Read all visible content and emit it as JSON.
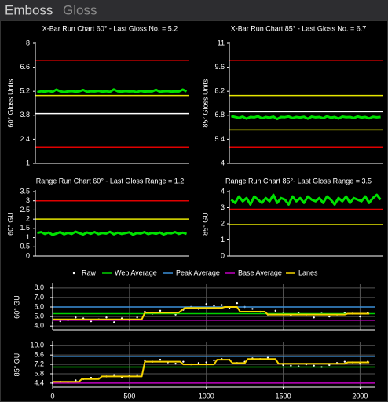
{
  "tabs": [
    "Emboss",
    "Gloss"
  ],
  "legend": {
    "position": "top"
  },
  "chart_data": [
    {
      "type": "line",
      "title": "X-Bar Run Chart 60° - Last Gloss No. = 5.2",
      "y_label": "60° Gloss Units",
      "ylim": [
        1,
        8
      ],
      "yticks": [
        1,
        2.4,
        3.8,
        5.2,
        6.6,
        8
      ],
      "hlines": [
        {
          "value": 7,
          "color": "#e00000"
        },
        {
          "value": 4.95,
          "color": "#e6e600"
        },
        {
          "value": 3.9,
          "color": "#ffffff"
        },
        {
          "value": 1.95,
          "color": "#e00000"
        }
      ],
      "series": [
        {
          "color": "#00e000",
          "values": [
            5.15,
            5.2,
            5.18,
            5.22,
            5.17,
            5.3,
            5.2,
            5.16,
            5.19,
            5.21,
            5.18,
            5.2,
            5.28,
            5.17,
            5.2,
            5.19,
            5.22,
            5.18,
            5.2,
            5.17,
            5.31,
            5.2,
            5.18,
            5.21,
            5.19,
            5.2,
            5.16,
            5.22,
            5.18,
            5.2,
            5.19,
            5.29,
            5.17,
            5.2,
            5.21,
            5.18,
            5.2,
            5.19,
            5.3,
            5.2
          ]
        }
      ]
    },
    {
      "type": "line",
      "title": "X-Bar Run Chart 85° - Last Gloss No. = 6.7",
      "y_label": "85° Gloss Units",
      "ylim": [
        4,
        11
      ],
      "yticks": [
        4,
        5.4,
        6.8,
        8.2,
        9.6,
        11
      ],
      "hlines": [
        {
          "value": 10,
          "color": "#e00000"
        },
        {
          "value": 7.95,
          "color": "#e6e600"
        },
        {
          "value": 7,
          "color": "#ffffff"
        },
        {
          "value": 5.95,
          "color": "#e6e600"
        },
        {
          "value": 4.95,
          "color": "#e00000"
        }
      ],
      "series": [
        {
          "color": "#00e000",
          "values": [
            6.75,
            6.7,
            6.65,
            6.72,
            6.6,
            6.7,
            6.68,
            6.74,
            6.62,
            6.7,
            6.66,
            6.72,
            6.58,
            6.7,
            6.69,
            6.73,
            6.64,
            6.7,
            6.67,
            6.71,
            6.6,
            6.72,
            6.68,
            6.7,
            6.63,
            6.74,
            6.66,
            6.7,
            6.61,
            6.72,
            6.69,
            6.7,
            6.64,
            6.73,
            6.67,
            6.7,
            6.62,
            6.71,
            6.68,
            6.7
          ]
        }
      ]
    },
    {
      "type": "line",
      "title": "Range Run Chart 60° - Last Gloss Range = 1.2",
      "y_label": "60° GU",
      "ylim": [
        0,
        3.5
      ],
      "yticks": [
        0,
        0.5,
        1,
        1.5,
        2,
        2.5,
        3,
        3.5
      ],
      "hlines": [
        {
          "value": 3,
          "color": "#e00000"
        },
        {
          "value": 2,
          "color": "#e6e600"
        }
      ],
      "series": [
        {
          "color": "#00e000",
          "values": [
            1.25,
            1.3,
            1.2,
            1.28,
            1.15,
            1.22,
            1.3,
            1.18,
            1.26,
            1.2,
            1.32,
            1.24,
            1.17,
            1.28,
            1.21,
            1.3,
            1.19,
            1.25,
            1.22,
            1.31,
            1.18,
            1.27,
            1.2,
            1.24,
            1.29,
            1.16,
            1.25,
            1.22,
            1.3,
            1.19,
            1.26,
            1.21,
            1.28,
            1.17,
            1.25,
            1.23,
            1.3,
            1.2,
            1.27,
            1.2
          ]
        }
      ]
    },
    {
      "type": "line",
      "title": "Range Run Chart 85°- Last Gloss Range = 3.5",
      "y_label": "85° GU",
      "ylim": [
        0,
        4
      ],
      "yticks": [
        0,
        1,
        2,
        3,
        4
      ],
      "hlines": [
        {
          "value": 2.9,
          "color": "#e00000"
        },
        {
          "value": 1.95,
          "color": "#e6e600"
        }
      ],
      "series": [
        {
          "color": "#00e000",
          "values": [
            3.5,
            3.3,
            3.7,
            3.4,
            3.6,
            3.2,
            3.7,
            3.5,
            3.3,
            3.6,
            3.4,
            3.8,
            3.3,
            3.6,
            3.5,
            3.2,
            3.7,
            3.4,
            3.6,
            3.3,
            3.7,
            3.5,
            3.4,
            3.6,
            3.3,
            3.7,
            3.5,
            3.2,
            3.6,
            3.4,
            3.7,
            3.3,
            3.6,
            3.5,
            3.4,
            3.7,
            3.3,
            3.6,
            3.8,
            3.5
          ]
        }
      ]
    },
    {
      "type": "line",
      "y_label": "60° GU",
      "xlim": [
        0,
        2100
      ],
      "ylim": [
        3.6,
        8.4
      ],
      "grid": true,
      "yticks": [
        {
          "value": 4,
          "label": "4.0"
        },
        {
          "value": 5,
          "label": "5.0"
        },
        {
          "value": 6,
          "label": "6.0"
        },
        {
          "value": 7,
          "label": "7.0"
        },
        {
          "value": 8,
          "label": "8.0"
        }
      ],
      "series": [
        {
          "name": "Raw",
          "color": "#ffffff",
          "style": "points",
          "x": [
            0,
            50,
            100,
            150,
            200,
            250,
            300,
            350,
            400,
            450,
            500,
            550,
            600,
            650,
            700,
            750,
            800,
            850,
            900,
            950,
            1000,
            1050,
            1100,
            1150,
            1200,
            1250,
            1300,
            1350,
            1400,
            1450,
            1500,
            1550,
            1600,
            1650,
            1700,
            1750,
            1800,
            1850,
            1900,
            1950,
            2000,
            2050
          ],
          "values": [
            4.3,
            4.5,
            4.6,
            4.9,
            4.8,
            4.5,
            4.7,
            4.9,
            4.4,
            4.8,
            4.6,
            4.9,
            5.5,
            5.3,
            5.6,
            5.4,
            5.2,
            5.7,
            6.0,
            5.8,
            6.3,
            6.1,
            6.2,
            5.9,
            6.4,
            6.0,
            5.8,
            5.5,
            5.2,
            5.6,
            5.3,
            5.1,
            5.4,
            5.2,
            4.9,
            5.3,
            5.0,
            5.2,
            5.4,
            5.3,
            5.0,
            5.4
          ]
        },
        {
          "name": "Web Average",
          "color": "#00d000",
          "style": "constant",
          "value": 5.3
        },
        {
          "name": "Peak Average",
          "color": "#3a8fd9",
          "style": "constant",
          "value": 6.0
        },
        {
          "name": "Base Average",
          "color": "#c000c0",
          "style": "constant",
          "value": 4.6
        },
        {
          "name": "Lanes",
          "color": "#f5d400",
          "style": "line",
          "x": [
            0,
            580,
            600,
            820,
            860,
            1100,
            1120,
            1200,
            1220,
            1380,
            1400,
            1900,
            1920,
            2060
          ],
          "values": [
            4.7,
            4.7,
            5.4,
            5.4,
            5.9,
            5.9,
            6.0,
            6.0,
            5.5,
            5.5,
            5.2,
            5.2,
            5.3,
            5.3
          ]
        }
      ]
    },
    {
      "type": "line",
      "y_label": "85° GU",
      "xlim": [
        0,
        2100
      ],
      "ylim": [
        3.8,
        10.5
      ],
      "grid": true,
      "xticks": [
        0,
        500,
        1000,
        1500,
        2000
      ],
      "yticks": [
        4.4,
        5.8,
        7.2,
        8.6,
        {
          "value": 10,
          "label": "10.0"
        }
      ],
      "series": [
        {
          "color": "#ffffff",
          "style": "points",
          "x": [
            0,
            50,
            100,
            150,
            200,
            250,
            300,
            350,
            400,
            450,
            500,
            550,
            600,
            650,
            700,
            750,
            800,
            850,
            900,
            950,
            1000,
            1050,
            1100,
            1150,
            1200,
            1250,
            1300,
            1350,
            1400,
            1450,
            1500,
            1550,
            1600,
            1650,
            1700,
            1750,
            1800,
            1850,
            1900,
            1950,
            2000,
            2050
          ],
          "values": [
            4.4,
            4.6,
            4.5,
            4.8,
            5.0,
            5.2,
            5.1,
            5.4,
            5.6,
            5.3,
            5.5,
            5.6,
            7.8,
            7.6,
            7.9,
            7.5,
            7.3,
            7.6,
            7.2,
            7.4,
            7.5,
            7.8,
            8.0,
            7.9,
            7.4,
            7.6,
            8.1,
            8.0,
            8.2,
            7.9,
            7.1,
            7.0,
            6.9,
            7.2,
            7.0,
            6.8,
            7.1,
            7.4,
            7.6,
            7.5,
            7.3,
            7.6
          ]
        },
        {
          "color": "#00d000",
          "style": "constant",
          "value": 6.8
        },
        {
          "color": "#3a8fd9",
          "style": "constant",
          "value": 8.4
        },
        {
          "color": "#c000c0",
          "style": "constant",
          "value": 4.4
        },
        {
          "color": "#f5d400",
          "style": "line",
          "x": [
            0,
            170,
            190,
            300,
            320,
            580,
            600,
            830,
            850,
            1050,
            1070,
            1150,
            1170,
            1250,
            1270,
            1450,
            1470,
            1900,
            1920,
            2060
          ],
          "values": [
            4.6,
            4.6,
            5.0,
            5.0,
            5.4,
            5.4,
            7.6,
            7.6,
            7.2,
            7.2,
            7.9,
            7.9,
            7.4,
            7.4,
            8.0,
            8.0,
            7.3,
            7.3,
            7.5,
            7.5
          ]
        }
      ]
    }
  ]
}
